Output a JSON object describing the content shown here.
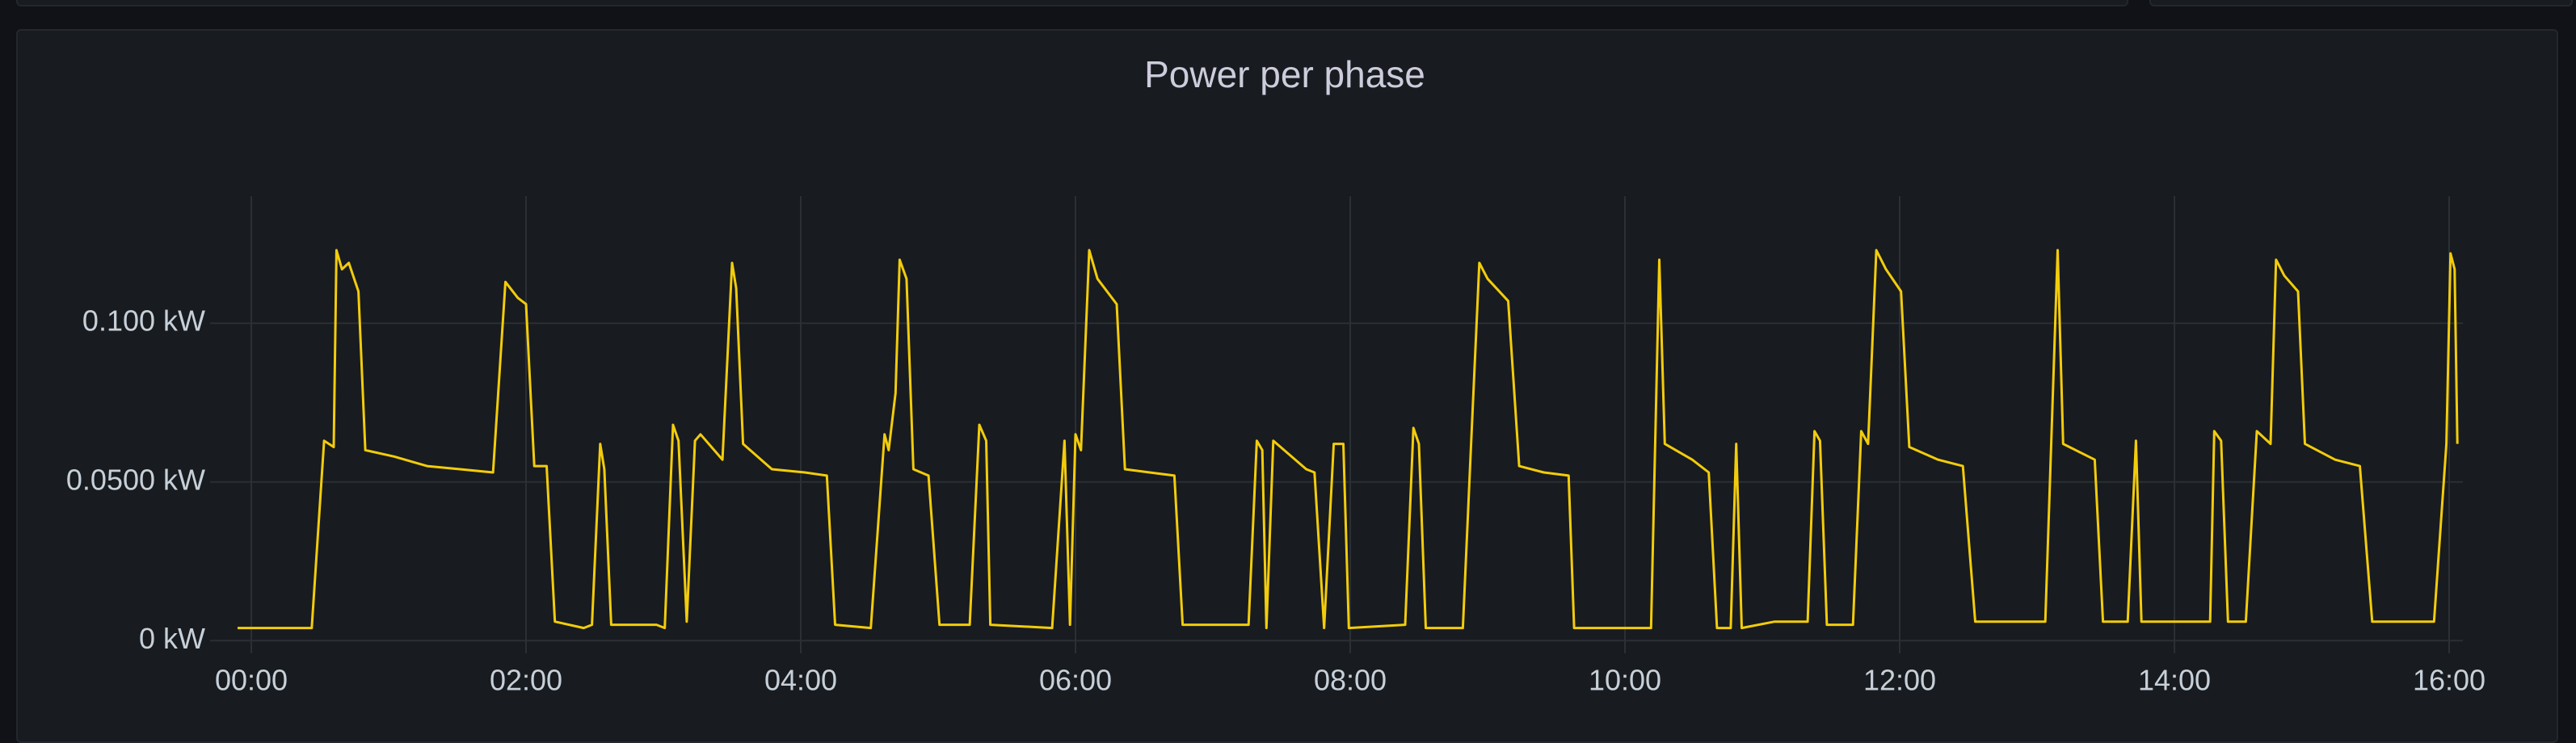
{
  "chart_data": {
    "type": "line",
    "title": "Power per phase",
    "color": "#f2cc0c",
    "grid": true,
    "xlim": [
      -0.3,
      16.1
    ],
    "xticks": [
      {
        "value": 0,
        "label": "00:00"
      },
      {
        "value": 2,
        "label": "02:00"
      },
      {
        "value": 4,
        "label": "04:00"
      },
      {
        "value": 6,
        "label": "06:00"
      },
      {
        "value": 8,
        "label": "08:00"
      },
      {
        "value": 10,
        "label": "10:00"
      },
      {
        "value": 12,
        "label": "12:00"
      },
      {
        "value": 14,
        "label": "14:00"
      },
      {
        "value": 16,
        "label": "16:00"
      }
    ],
    "ylim": [
      -0.004,
      0.14
    ],
    "yticks": [
      {
        "value": 0,
        "label": "0 kW"
      },
      {
        "value": 0.05,
        "label": "0.0500 kW"
      },
      {
        "value": 0.1,
        "label": "0.100 kW"
      }
    ],
    "x": [
      -0.1,
      0.44,
      0.53,
      0.6,
      0.62,
      0.66,
      0.71,
      0.78,
      0.83,
      1.04,
      1.28,
      1.52,
      1.76,
      1.85,
      1.94,
      2.0,
      2.06,
      2.15,
      2.21,
      2.42,
      2.48,
      2.54,
      2.57,
      2.62,
      2.95,
      3.01,
      3.07,
      3.11,
      3.17,
      3.23,
      3.27,
      3.43,
      3.5,
      3.53,
      3.58,
      3.79,
      4.03,
      4.19,
      4.25,
      4.51,
      4.61,
      4.64,
      4.69,
      4.72,
      4.77,
      4.82,
      4.93,
      5.01,
      5.23,
      5.3,
      5.35,
      5.38,
      5.83,
      5.92,
      5.96,
      6.0,
      6.04,
      6.1,
      6.16,
      6.3,
      6.36,
      6.54,
      6.72,
      6.78,
      7.26,
      7.32,
      7.36,
      7.39,
      7.44,
      7.68,
      7.74,
      7.81,
      7.88,
      7.95,
      7.99,
      8.4,
      8.46,
      8.5,
      8.55,
      8.82,
      8.88,
      8.94,
      9.0,
      9.15,
      9.23,
      9.41,
      9.59,
      9.63,
      10.19,
      10.25,
      10.29,
      10.49,
      10.61,
      10.67,
      10.77,
      10.81,
      10.85,
      11.09,
      11.33,
      11.38,
      11.42,
      11.47,
      11.66,
      11.72,
      11.77,
      11.83,
      11.9,
      12.01,
      12.07,
      12.28,
      12.46,
      12.55,
      13.06,
      13.15,
      13.19,
      13.42,
      13.48,
      13.66,
      13.72,
      13.76,
      13.96,
      14.26,
      14.29,
      14.34,
      14.39,
      14.52,
      14.6,
      14.7,
      14.74,
      14.8,
      14.9,
      14.95,
      15.17,
      15.35,
      15.44,
      15.89,
      15.98,
      16.01,
      16.04,
      16.06
    ],
    "values": [
      0.004,
      0.004,
      0.063,
      0.061,
      0.123,
      0.117,
      0.119,
      0.11,
      0.06,
      0.058,
      0.055,
      0.054,
      0.053,
      0.113,
      0.108,
      0.106,
      0.055,
      0.055,
      0.006,
      0.004,
      0.005,
      0.062,
      0.054,
      0.005,
      0.005,
      0.004,
      0.068,
      0.063,
      0.006,
      0.063,
      0.065,
      0.057,
      0.119,
      0.111,
      0.062,
      0.054,
      0.053,
      0.052,
      0.005,
      0.004,
      0.065,
      0.06,
      0.078,
      0.12,
      0.114,
      0.054,
      0.052,
      0.005,
      0.005,
      0.068,
      0.063,
      0.005,
      0.004,
      0.063,
      0.005,
      0.065,
      0.06,
      0.123,
      0.114,
      0.106,
      0.054,
      0.053,
      0.052,
      0.005,
      0.005,
      0.063,
      0.06,
      0.004,
      0.063,
      0.054,
      0.053,
      0.004,
      0.062,
      0.062,
      0.004,
      0.005,
      0.067,
      0.062,
      0.004,
      0.004,
      0.062,
      0.119,
      0.114,
      0.107,
      0.055,
      0.053,
      0.052,
      0.004,
      0.004,
      0.12,
      0.062,
      0.057,
      0.053,
      0.004,
      0.004,
      0.062,
      0.004,
      0.006,
      0.006,
      0.066,
      0.063,
      0.005,
      0.005,
      0.066,
      0.062,
      0.123,
      0.117,
      0.11,
      0.061,
      0.057,
      0.055,
      0.006,
      0.006,
      0.123,
      0.062,
      0.057,
      0.006,
      0.006,
      0.063,
      0.006,
      0.006,
      0.006,
      0.066,
      0.063,
      0.006,
      0.006,
      0.066,
      0.062,
      0.12,
      0.115,
      0.11,
      0.062,
      0.057,
      0.055,
      0.006,
      0.006,
      0.062,
      0.122,
      0.117,
      0.062
    ]
  }
}
